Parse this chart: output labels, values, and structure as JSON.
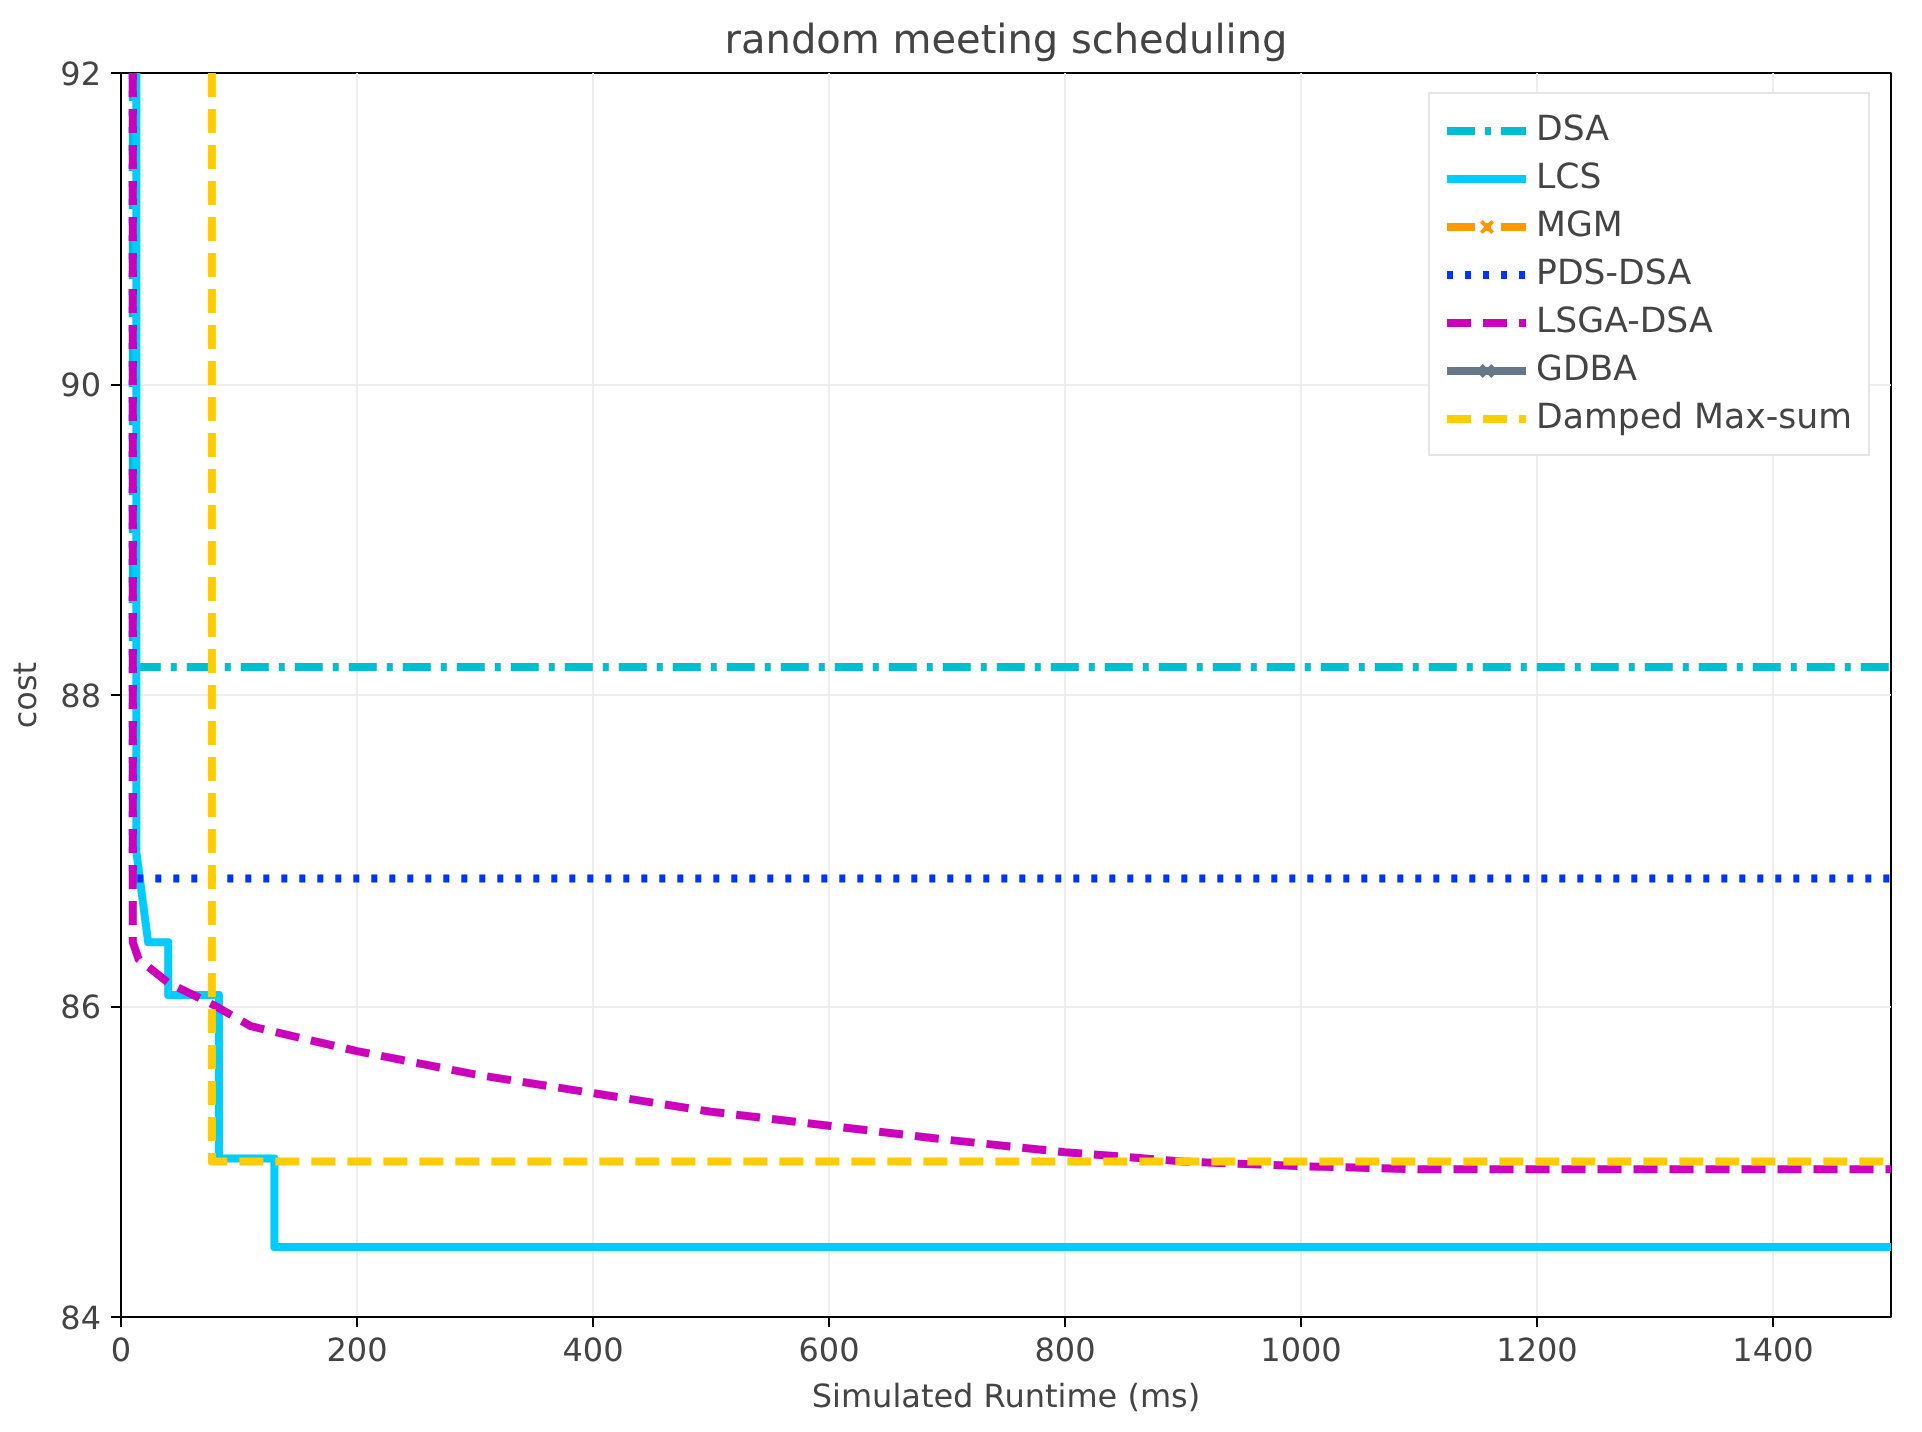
{
  "chart_data": {
    "type": "line",
    "title": "random meeting scheduling",
    "xlabel": "Simulated Runtime (ms)",
    "ylabel": "cost",
    "xlim": [
      0,
      1500
    ],
    "xticks": [
      0,
      200,
      400,
      600,
      800,
      1000,
      1200,
      1400
    ],
    "ylim": [
      84,
      92
    ],
    "yticks": [
      84,
      86,
      88,
      90,
      92
    ],
    "grid": true,
    "legend": "top right",
    "series": [
      {
        "name": "DSA",
        "color": "#00bcd4",
        "line_style": "dashdot",
        "x": [
          10,
          10,
          1500
        ],
        "values": [
          92,
          88.18,
          88.18
        ]
      },
      {
        "name": "LCS",
        "color": "#00ccff",
        "line_style": "solid",
        "x": [
          13,
          13,
          23,
          40,
          40,
          83,
          83,
          130,
          130,
          1500
        ],
        "values": [
          92,
          86.99,
          86.41,
          86.41,
          86.07,
          86.07,
          85.02,
          85.02,
          84.45,
          84.45
        ]
      },
      {
        "name": "MGM",
        "color": "#ff9900",
        "line_style": "dashdot",
        "marker": "cross"
      },
      {
        "name": "PDS-DSA",
        "color": "#0033ff",
        "line_style": "dotted",
        "x": [
          10,
          10,
          1500
        ],
        "values": [
          92,
          86.82,
          86.82
        ]
      },
      {
        "name": "LSGA-DSA",
        "color": "#cc00bb",
        "line_style": "dashed",
        "x": [
          10,
          10,
          15,
          40,
          80,
          110,
          200,
          300,
          400,
          500,
          600,
          700,
          800,
          900,
          1000,
          1100,
          1500
        ],
        "values": [
          92,
          86.41,
          86.3,
          86.15,
          86.0,
          85.87,
          85.71,
          85.56,
          85.44,
          85.32,
          85.23,
          85.14,
          85.06,
          85.0,
          84.97,
          84.95,
          84.95
        ]
      },
      {
        "name": "GDBA",
        "color": "#667788",
        "line_style": "solid",
        "marker": "cross"
      },
      {
        "name": "Damped Max-sum",
        "color": "#ffcc00",
        "line_style": "dashed",
        "x": [
          77,
          77,
          1500
        ],
        "values": [
          92,
          85.0,
          85.0
        ]
      }
    ]
  }
}
